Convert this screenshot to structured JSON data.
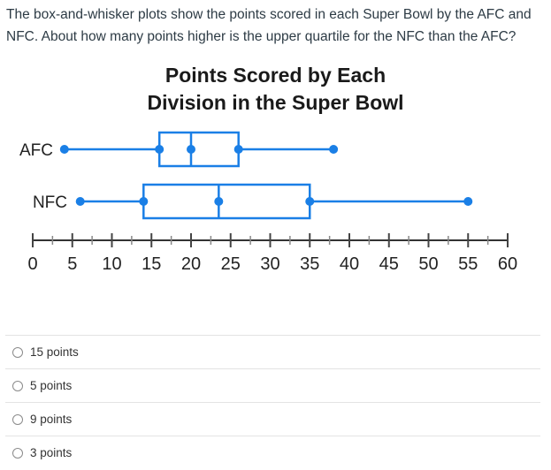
{
  "question": {
    "text": "The box-and-whisker plots show the points scored in each Super Bowl by the AFC and NFC.  About how many points higher is the upper quartile for the NFC than the AFC?"
  },
  "chart_data": {
    "type": "boxplot",
    "title_lines": [
      "Points Scored by Each",
      "Division in the Super Bowl"
    ],
    "xlabel": "",
    "ylabel": "",
    "xlim": [
      0,
      60
    ],
    "major_ticks": [
      0,
      5,
      10,
      15,
      20,
      25,
      30,
      35,
      40,
      45,
      50,
      55,
      60
    ],
    "tick_labels": [
      "0",
      "5",
      "10",
      "15",
      "20",
      "25",
      "30",
      "35",
      "40",
      "45",
      "50",
      "55",
      "60"
    ],
    "minor_tick_step": 2.5,
    "color": "#1a7fe6",
    "series": [
      {
        "name": "AFC",
        "min": 4,
        "q1": 16,
        "median": 20,
        "q3": 26,
        "max": 38
      },
      {
        "name": "NFC",
        "min": 6,
        "q1": 14,
        "median": 23.5,
        "q3": 35,
        "max": 55
      }
    ]
  },
  "choices": [
    {
      "label": "15 points"
    },
    {
      "label": "5 points"
    },
    {
      "label": "9 points"
    },
    {
      "label": "3 points"
    }
  ]
}
